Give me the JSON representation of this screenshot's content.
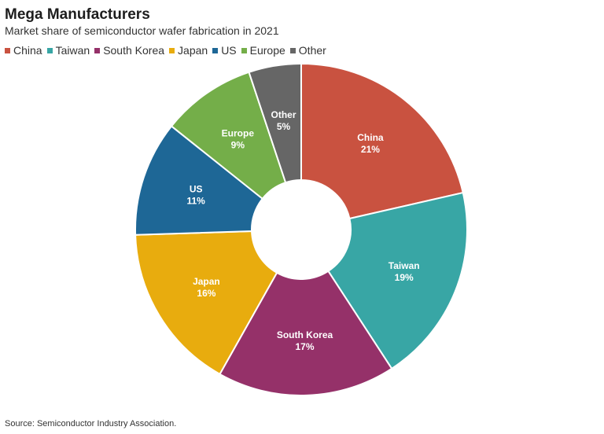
{
  "title": "Mega Manufacturers",
  "subtitle": "Market share of semiconductor wafer fabrication in 2021",
  "source": "Source: Semiconductor Industry Association.",
  "chart_data": {
    "type": "pie",
    "title": "Mega Manufacturers",
    "subtitle": "Market share of semiconductor wafer fabrication in 2021",
    "legend_position": "top-left",
    "donut": true,
    "categories": [
      "China",
      "Taiwan",
      "South Korea",
      "Japan",
      "US",
      "Europe",
      "Other"
    ],
    "values": [
      21,
      19,
      17,
      16,
      11,
      9,
      5
    ],
    "value_labels": [
      "21%",
      "19%",
      "17%",
      "16%",
      "11%",
      "9%",
      "5%"
    ],
    "colors": [
      "#c95240",
      "#38a6a5",
      "#953169",
      "#e8ac0e",
      "#1e6796",
      "#74ae49",
      "#666666"
    ]
  }
}
